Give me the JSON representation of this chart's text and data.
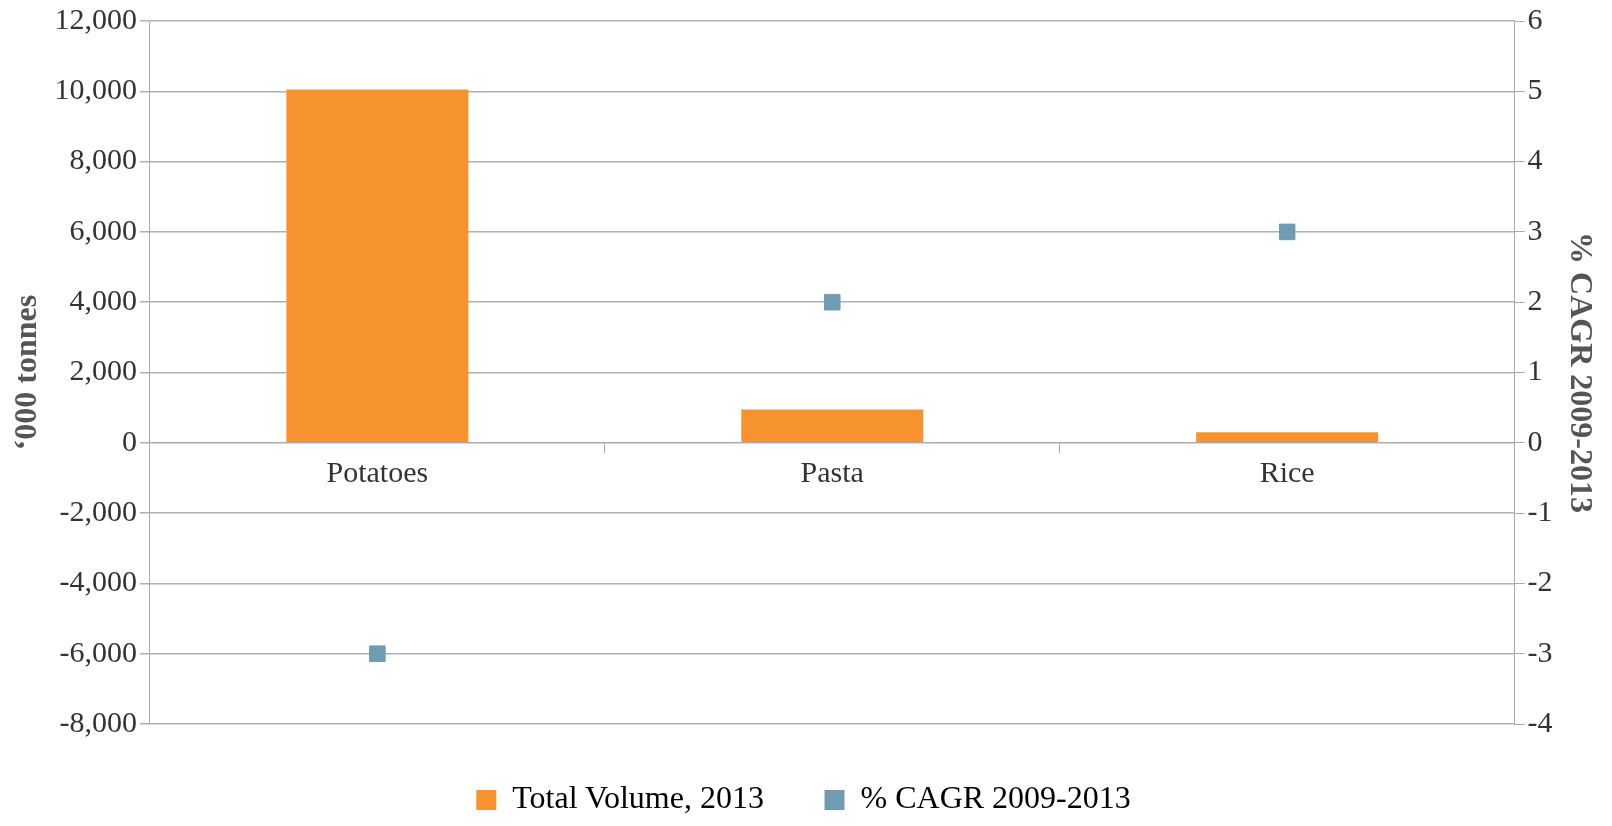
{
  "chart_data": {
    "type": "bar",
    "categories": [
      "Potatoes",
      "Pasta",
      "Rice"
    ],
    "series": [
      {
        "name": "Total Volume, 2013",
        "color": "#f7932e",
        "values": [
          10050,
          950,
          300
        ]
      },
      {
        "name": "% CAGR 2009-2013",
        "type": "scatter",
        "axis": "y2",
        "color": "#6f9bb3",
        "values": [
          -3,
          2,
          3
        ]
      }
    ],
    "ylabel": "‘000 tonnes",
    "y2label": "% CAGR 2009-2013",
    "ylim": [
      -8000,
      12000
    ],
    "yticks": [
      {
        "value": -8000,
        "label": "-8,000"
      },
      {
        "value": -6000,
        "label": "-6,000"
      },
      {
        "value": -4000,
        "label": "-4,000"
      },
      {
        "value": -2000,
        "label": "-2,000"
      },
      0,
      {
        "value": 2000,
        "label": "2,000"
      },
      {
        "value": 4000,
        "label": "4,000"
      },
      {
        "value": 6000,
        "label": "6,000"
      },
      {
        "value": 8000,
        "label": "8,000"
      },
      {
        "value": 10000,
        "label": "10,000"
      },
      {
        "value": 12000,
        "label": "12,000"
      }
    ],
    "y2lim": [
      -4,
      6
    ],
    "y2ticks": [
      -4,
      -3,
      -2,
      -1,
      0,
      1,
      2,
      3,
      4,
      5,
      6
    ],
    "grid": "y",
    "legend": "bottom",
    "marker": "square"
  }
}
